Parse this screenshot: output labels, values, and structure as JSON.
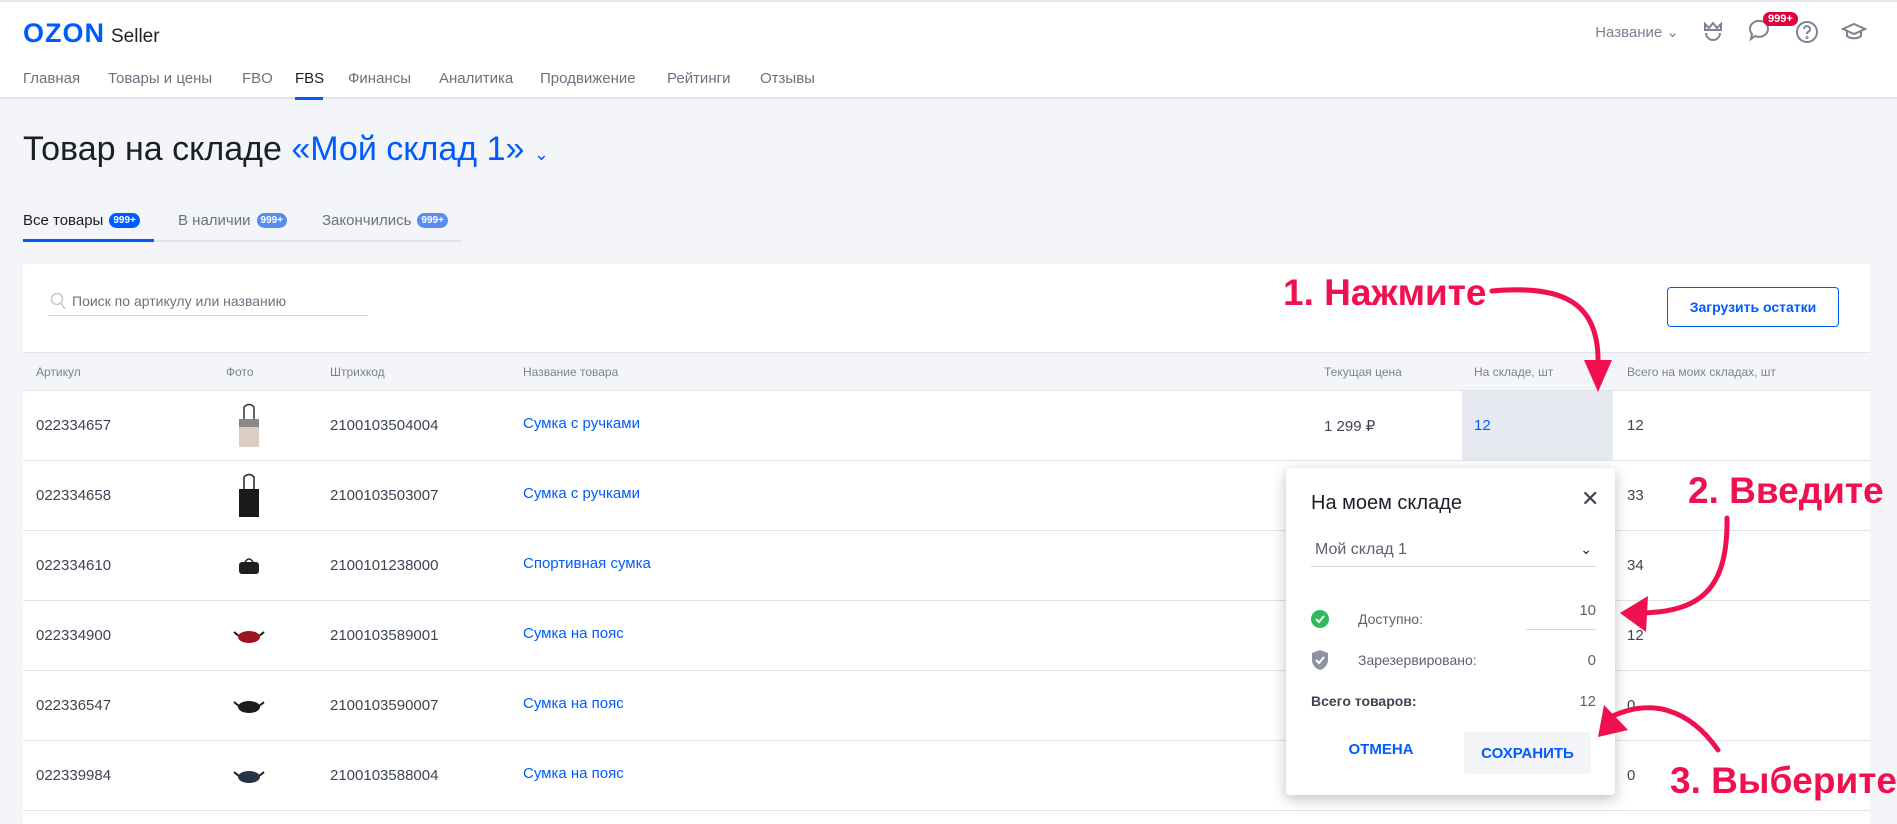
{
  "header": {
    "logo": "OZON",
    "logo_sub": "Seller",
    "company": "Название",
    "messages_badge": "999+",
    "nav": [
      "Главная",
      "Товары и цены",
      "FBO",
      "FBS",
      "Финансы",
      "Аналитика",
      "Продвижение",
      "Рейтинги",
      "Отзывы"
    ],
    "active_nav": "FBS"
  },
  "page": {
    "title": "Товар на складе",
    "warehouse": "«Мой склад 1»"
  },
  "tabs": [
    {
      "label": "Все товары",
      "count": "999+"
    },
    {
      "label": "В наличии",
      "count": "999+"
    },
    {
      "label": "Закончились",
      "count": "999+"
    }
  ],
  "search": {
    "placeholder": "Поиск по артикулу или названию"
  },
  "upload_button": "Загрузить остатки",
  "table": {
    "columns": [
      "Артикул",
      "Фото",
      "Штрихкод",
      "Название товара",
      "Текущая цена",
      "На складе, шт",
      "Всего на моих складах, шт"
    ],
    "rows": [
      {
        "sku": "022334657",
        "photo": "tote-beige",
        "barcode": "2100103504004",
        "name": "Сумка с ручками",
        "price": "1 299 ₽",
        "stock": "12",
        "total": "12"
      },
      {
        "sku": "022334658",
        "photo": "tote-black",
        "barcode": "2100103503007",
        "name": "Сумка с ручками",
        "price": "",
        "stock": "",
        "total": "33"
      },
      {
        "sku": "022334610",
        "photo": "sport-bag",
        "barcode": "2100101238000",
        "name": "Спортивная сумка",
        "price": "",
        "stock": "",
        "total": "34"
      },
      {
        "sku": "022334900",
        "photo": "waist-red",
        "barcode": "2100103589001",
        "name": "Сумка на пояс",
        "price": "",
        "stock": "",
        "total": "12"
      },
      {
        "sku": "022336547",
        "photo": "waist-black",
        "barcode": "2100103590007",
        "name": "Сумка на пояс",
        "price": "",
        "stock": "",
        "total": "0"
      },
      {
        "sku": "022339984",
        "photo": "waist-navy",
        "barcode": "2100103588004",
        "name": "Сумка на пояс",
        "price": "",
        "stock": "",
        "total": "0"
      }
    ]
  },
  "popup": {
    "title": "На моем складе",
    "warehouse": "Мой склад 1",
    "available_label": "Доступно:",
    "available": "10",
    "reserved_label": "Зарезервировано:",
    "reserved": "0",
    "total_label": "Всего товаров:",
    "total": "12",
    "cancel": "ОТМЕНА",
    "save": "СОХРАНИТЬ"
  },
  "annotations": {
    "step1": "1. Нажмите",
    "step2": "2. Введите",
    "step3": "3. Выберите",
    "color": "#f0104f"
  }
}
